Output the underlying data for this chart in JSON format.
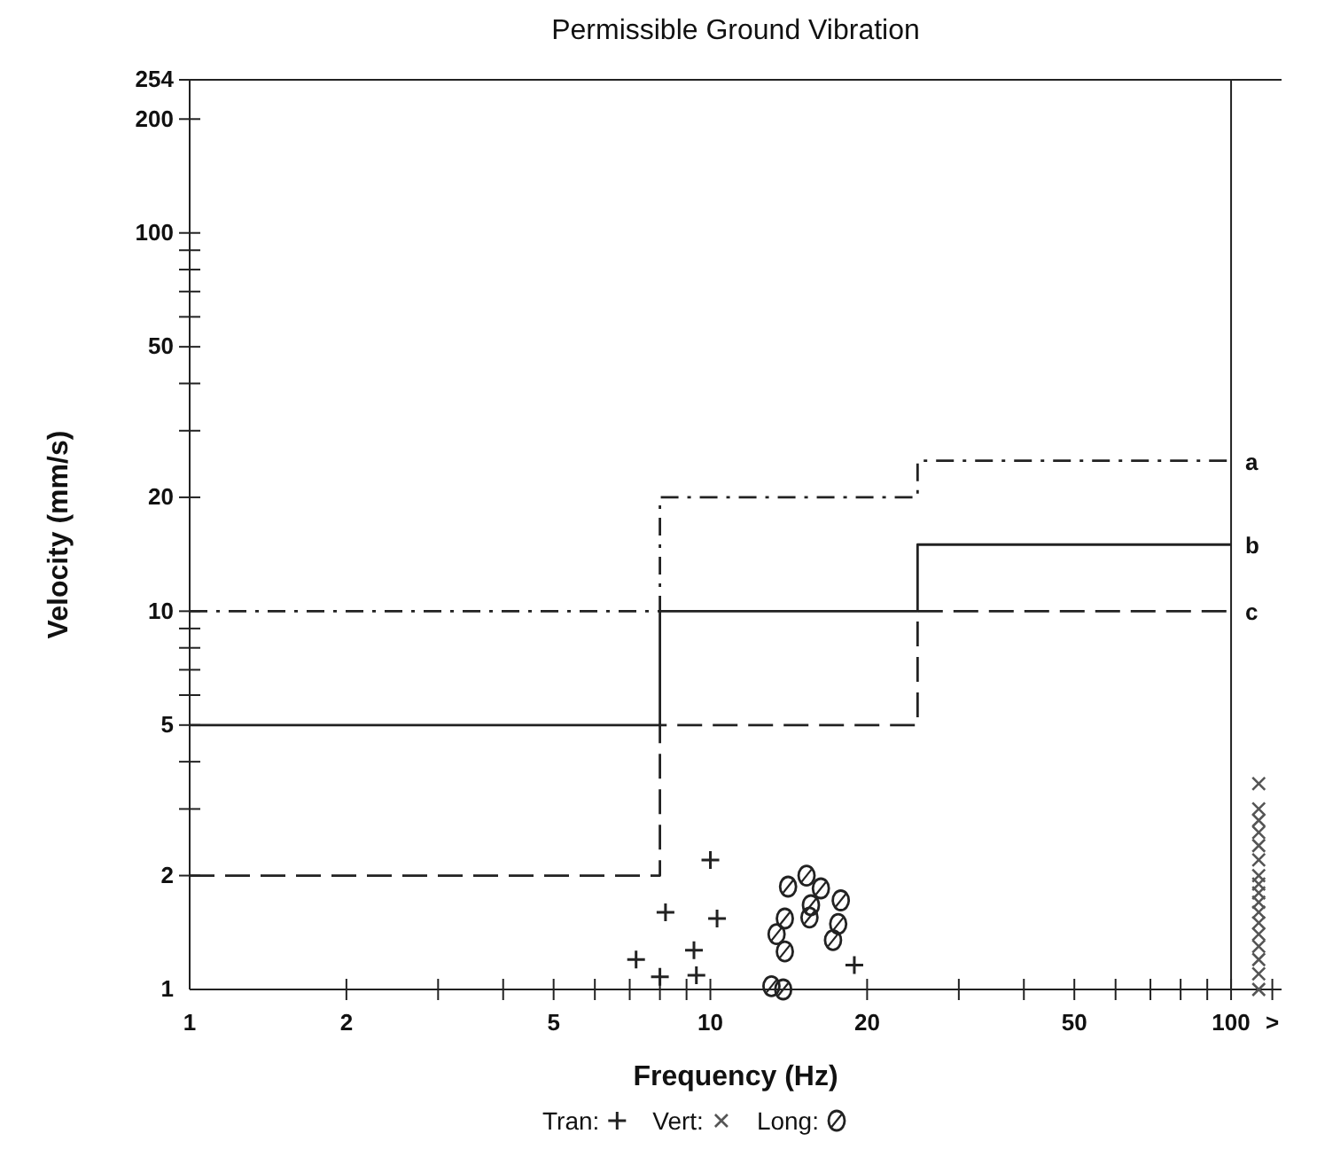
{
  "chart_data": {
    "type": "step",
    "title": "Permissible Ground Vibration",
    "xlabel": "Frequency (Hz)",
    "ylabel": "Velocity (mm/s)",
    "log": "xy",
    "xlim": [
      1,
      125
    ],
    "ylim": [
      1,
      254
    ],
    "xticks": [
      1,
      2,
      {
        "value": 3,
        "label": null
      },
      {
        "value": 4,
        "label": null
      },
      5,
      {
        "value": 6,
        "label": null
      },
      {
        "value": 7,
        "label": null
      },
      {
        "value": 8,
        "label": null
      },
      {
        "value": 9,
        "label": null
      },
      10,
      20,
      {
        "value": 30,
        "label": null
      },
      {
        "value": 40,
        "label": null
      },
      50,
      {
        "value": 60,
        "label": null
      },
      {
        "value": 70,
        "label": null
      },
      {
        "value": 80,
        "label": null
      },
      {
        "value": 90,
        "label": null
      },
      100,
      {
        "value": 120,
        "label": ">"
      }
    ],
    "yticks": [
      1,
      2,
      {
        "value": 3,
        "label": null
      },
      {
        "value": 4,
        "label": null
      },
      5,
      {
        "value": 6,
        "label": null
      },
      {
        "value": 7,
        "label": null
      },
      {
        "value": 8,
        "label": null
      },
      {
        "value": 9,
        "label": null
      },
      10,
      20,
      {
        "value": 30,
        "label": null
      },
      {
        "value": 40,
        "label": null
      },
      50,
      {
        "value": 60,
        "label": null
      },
      {
        "value": 70,
        "label": null
      },
      {
        "value": 80,
        "label": null
      },
      {
        "value": 90,
        "label": null
      },
      100,
      200,
      254
    ],
    "grid": false,
    "legend": "bottom",
    "ref_lines": [
      {
        "axis": "x",
        "value": 100,
        "color": "#222222"
      }
    ],
    "series": [
      {
        "name": "a",
        "line_style": "dashdot",
        "color": "#222222",
        "x": [
          1,
          8,
          25,
          100
        ],
        "values": [
          10,
          20,
          25,
          25
        ]
      },
      {
        "name": "b",
        "line_style": "solid",
        "color": "#222222",
        "x": [
          1,
          8,
          25,
          100
        ],
        "values": [
          5,
          10,
          15,
          15
        ]
      },
      {
        "name": "c",
        "line_style": "dashed",
        "color": "#222222",
        "x": [
          1,
          8,
          25,
          100
        ],
        "values": [
          2,
          5,
          10,
          10
        ]
      },
      {
        "name": "Tran:",
        "type": "scatter",
        "marker": "cross",
        "color": "#222222",
        "x": [
          10,
          8.2,
          10.3,
          7.2,
          9.3,
          8,
          9.4,
          18.9
        ],
        "values": [
          2.2,
          1.6,
          1.54,
          1.2,
          1.27,
          1.08,
          1.09,
          1.16
        ]
      },
      {
        "name": "Vert:",
        "type": "scatter",
        "marker": "x",
        "color": "#555555",
        "x": [
          113,
          113,
          113,
          113,
          113,
          113,
          113,
          113,
          113,
          113,
          113,
          113,
          113,
          113,
          113,
          113,
          113
        ],
        "values": [
          3.5,
          3,
          2.8,
          2.6,
          2.4,
          2.2,
          2,
          1.9,
          1.8,
          1.7,
          1.6,
          1.5,
          1.4,
          1.3,
          1.2,
          1.1,
          1
        ]
      },
      {
        "name": "Long:",
        "type": "scatter",
        "marker": "circle",
        "color": "#222222",
        "x": [
          15.3,
          14.1,
          16.3,
          15.6,
          17.8,
          13.9,
          15.5,
          17.6,
          13.4,
          17.2,
          13.9,
          13.1,
          13.8
        ],
        "values": [
          2,
          1.87,
          1.85,
          1.67,
          1.72,
          1.54,
          1.55,
          1.49,
          1.4,
          1.35,
          1.26,
          1.02,
          1
        ]
      }
    ]
  }
}
